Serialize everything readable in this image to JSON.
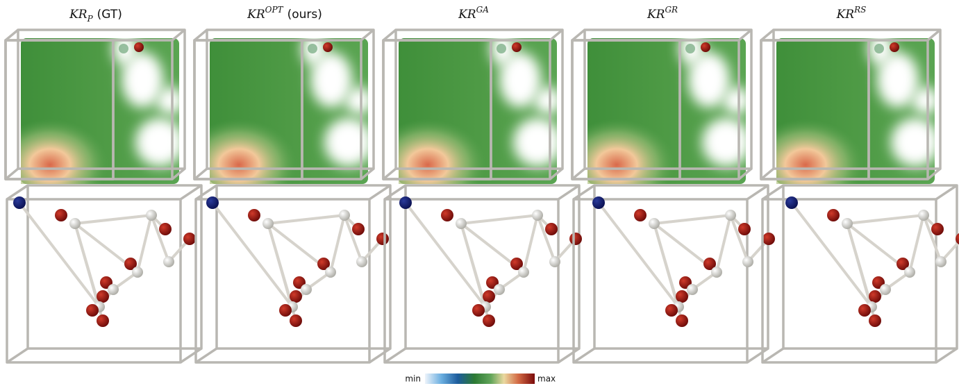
{
  "columns": [
    {
      "base": "KR",
      "sub": "P",
      "note": "(GT)"
    },
    {
      "base": "KR",
      "sup": "OPT",
      "note": "(ours)"
    },
    {
      "base": "KR",
      "sup": "GA"
    },
    {
      "base": "KR",
      "sup": "GR"
    },
    {
      "base": "KR",
      "sup": "RS"
    }
  ],
  "colorbar": {
    "min_label": "min",
    "max_label": "max"
  }
}
